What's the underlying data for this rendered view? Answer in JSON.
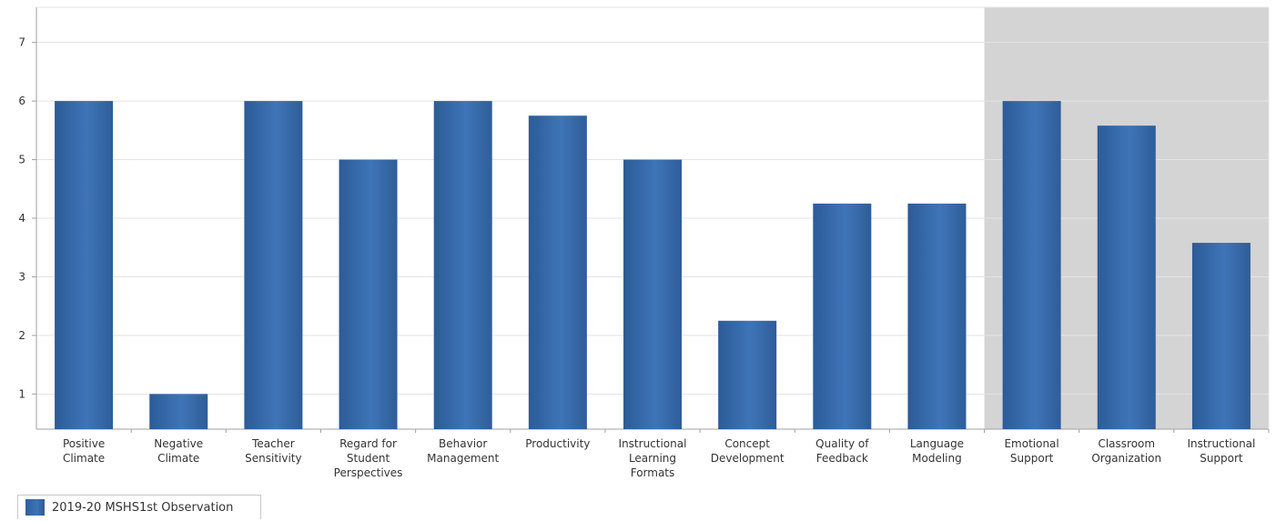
{
  "chart_data": {
    "type": "bar",
    "categories": [
      [
        "Positive",
        "Climate"
      ],
      [
        "Negative",
        "Climate"
      ],
      [
        "Teacher",
        "Sensitivity"
      ],
      [
        "Regard for",
        "Student",
        "Perspectives"
      ],
      [
        "Behavior",
        "Management"
      ],
      [
        "Productivity"
      ],
      [
        "Instructional",
        "Learning",
        "Formats"
      ],
      [
        "Concept",
        "Development"
      ],
      [
        "Quality of",
        "Feedback"
      ],
      [
        "Language",
        "Modeling"
      ],
      [
        "Emotional",
        "Support"
      ],
      [
        "Classroom",
        "Organization"
      ],
      [
        "Instructional",
        "Support"
      ]
    ],
    "series": [
      {
        "name": "2019-20 MSHS1st Observation",
        "values": [
          6,
          1,
          6,
          5,
          6,
          5.75,
          5,
          2.25,
          4.25,
          4.25,
          6,
          5.58,
          3.58
        ]
      }
    ],
    "ylim": [
      0.4,
      7.6
    ],
    "yticks": [
      1,
      2,
      3,
      4,
      5,
      6,
      7
    ],
    "grid": true,
    "shaded_categories": [
      10,
      11,
      12
    ],
    "legend_position": "bottom-left",
    "colors": {
      "bar": "#3a6cab",
      "shade": "#d4d4d4",
      "grid": "#e3e3e3",
      "axis": "#a0a0a0"
    }
  }
}
